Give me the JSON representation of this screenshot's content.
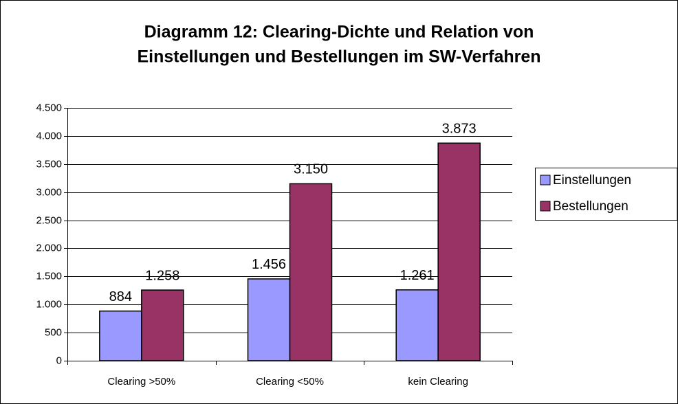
{
  "chart_data": {
    "type": "bar",
    "title": [
      "Diagramm 12: Clearing-Dichte und Relation von",
      "Einstellungen und Bestellungen im SW-Verfahren"
    ],
    "categories": [
      "Clearing >50%",
      "Clearing <50%",
      "kein Clearing"
    ],
    "series": [
      {
        "name": "Einstellungen",
        "color": "#9999ff",
        "values": [
          884,
          1456,
          1261
        ],
        "value_labels": [
          "884",
          "1.456",
          "1.261"
        ]
      },
      {
        "name": "Bestellungen",
        "color": "#993366",
        "values": [
          1258,
          3150,
          3873
        ],
        "value_labels": [
          "1.258",
          "3.150",
          "3.873"
        ]
      }
    ],
    "ylim": [
      0,
      4500
    ],
    "yticks": [
      0,
      {
        "value": 500,
        "label": "500"
      },
      {
        "value": 1000,
        "label": "1.000"
      },
      {
        "value": 1500,
        "label": "1.500"
      },
      {
        "value": 2000,
        "label": "2.000"
      },
      {
        "value": 2500,
        "label": "2.500"
      },
      {
        "value": 3000,
        "label": "3.000"
      },
      {
        "value": 3500,
        "label": "3.500"
      },
      {
        "value": 4000,
        "label": "4.000"
      },
      {
        "value": 4500,
        "label": "4.500"
      }
    ],
    "grid": true,
    "legend": "right"
  }
}
